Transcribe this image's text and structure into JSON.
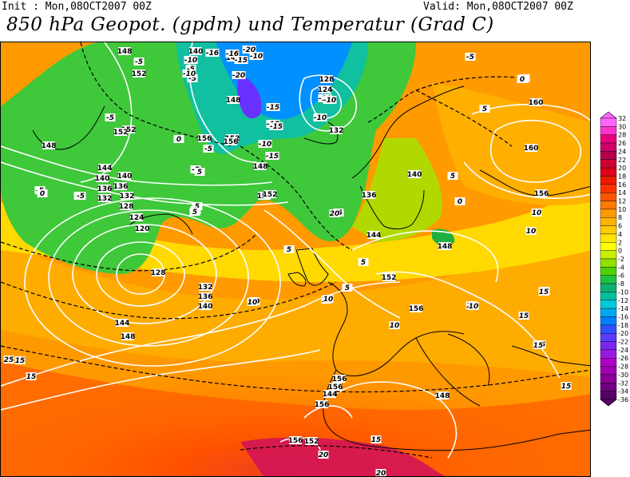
{
  "header": {
    "init_text": "Init : Mon,08OCT2007 00Z",
    "valid_text": "Valid: Mon,08OCT2007 00Z",
    "title": "850 hPa Geopot. (gpdm) und Temperatur (Grad C)"
  },
  "colorbar": {
    "levels": [
      "32",
      "30",
      "28",
      "26",
      "24",
      "22",
      "20",
      "18",
      "16",
      "14",
      "12",
      "10",
      "8",
      "6",
      "4",
      "2",
      "0",
      "-2",
      "-4",
      "-6",
      "-8",
      "-10",
      "-12",
      "-14",
      "-16",
      "-18",
      "-20",
      "-22",
      "-24",
      "-26",
      "-28",
      "-30",
      "-32",
      "-34",
      "-36"
    ],
    "colors": [
      "#ff66ff",
      "#ff33cc",
      "#e6007a",
      "#cc0066",
      "#b3004d",
      "#cc0033",
      "#e0001a",
      "#f01a00",
      "#ff3300",
      "#ff5500",
      "#ff7a00",
      "#ff9900",
      "#ffb300",
      "#ffcc00",
      "#ffe600",
      "#ffff00",
      "#c8f000",
      "#90e000",
      "#50d000",
      "#20c040",
      "#10b070",
      "#00c0a0",
      "#00c8d8",
      "#00a8f0",
      "#0080ff",
      "#3050ff",
      "#5a3cff",
      "#7a28f0",
      "#9a18e0",
      "#b000c8",
      "#a000b0",
      "#880098",
      "#700080",
      "#580068"
    ]
  },
  "geopotential_labels": [
    "148",
    "152",
    "148",
    "144",
    "140",
    "136",
    "132",
    "128",
    "124",
    "120",
    "128",
    "132",
    "136",
    "140",
    "144",
    "148",
    "152",
    "156",
    "140",
    "144",
    "148",
    "152",
    "156",
    "128",
    "124",
    "132",
    "136",
    "140",
    "144",
    "148",
    "152",
    "156",
    "160",
    "160",
    "156",
    "132",
    "136",
    "140",
    "144",
    "148",
    "152",
    "152",
    "152",
    "156",
    "156",
    "156",
    "156",
    "156",
    "152",
    "148",
    "144"
  ],
  "temperature_labels": [
    "-5",
    "-5",
    "-10",
    "-15",
    "-20",
    "-15",
    "-10",
    "-10",
    "-5",
    "-5",
    "-5",
    "-15",
    "-15",
    "-10",
    "-10",
    "-5",
    "-5",
    "0",
    "-5",
    "0",
    "5",
    "5",
    "5",
    "5",
    "0",
    "5",
    "10",
    "10",
    "10",
    "10",
    "10",
    "15",
    "15",
    "15",
    "15",
    "15",
    "15",
    "20",
    "20",
    "25",
    "0",
    "5",
    "10",
    "15",
    "-5",
    "0",
    "5",
    "10",
    "15",
    "5",
    "10",
    "-16",
    "-10",
    "-16",
    "-20",
    "-10",
    "-15",
    "5",
    "10",
    "15",
    "20",
    "-5",
    "0"
  ]
}
